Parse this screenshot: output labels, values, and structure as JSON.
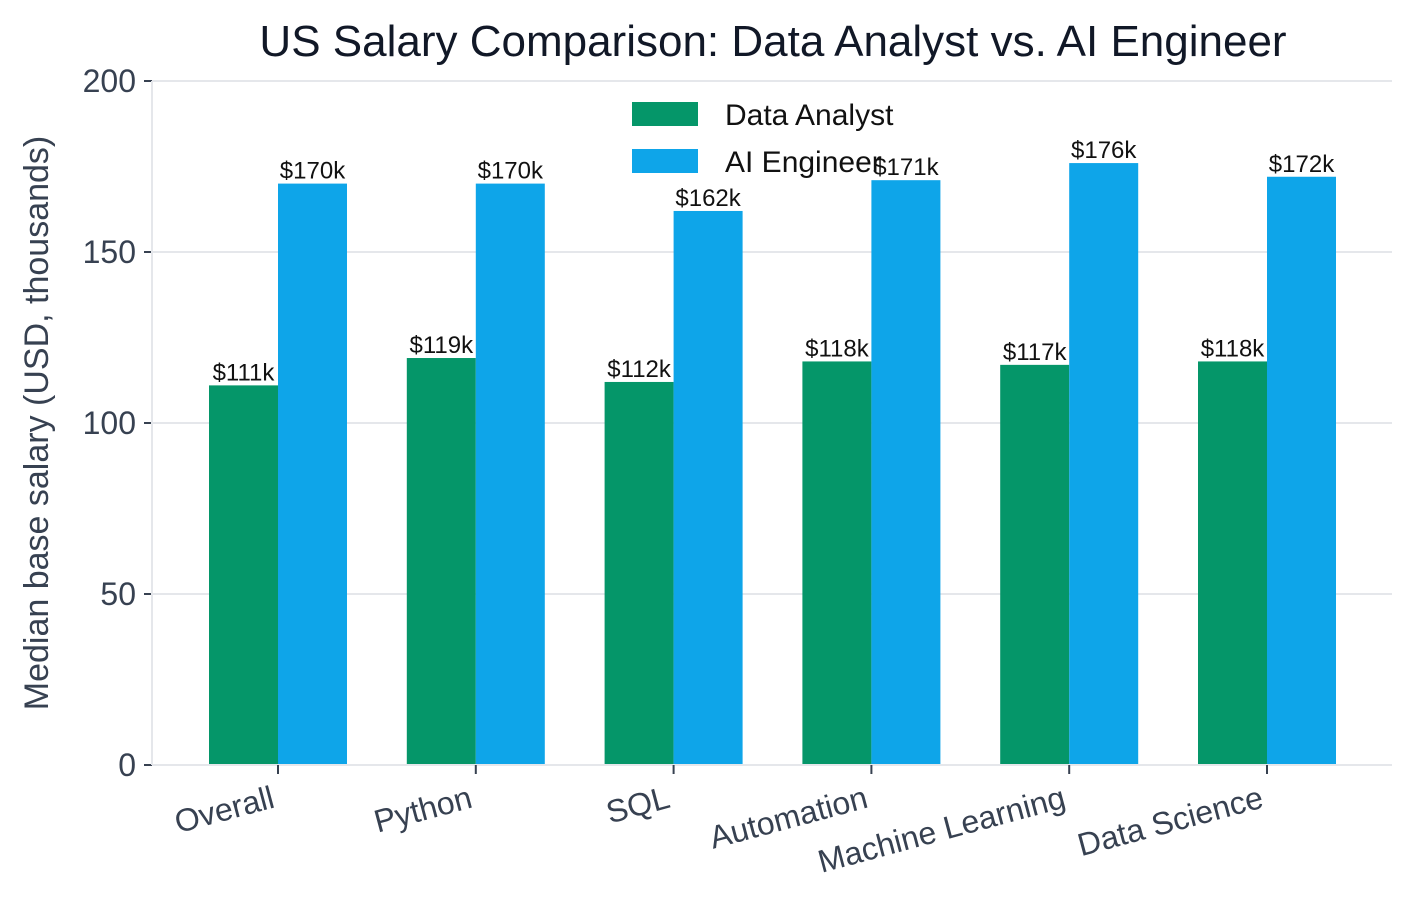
{
  "chart_data": {
    "type": "bar",
    "title": "US Salary Comparison: Data Analyst vs. AI Engineer",
    "xlabel": "",
    "ylabel": "Median base salary (USD, thousands)",
    "categories": [
      "Overall",
      "Python",
      "SQL",
      "Automation",
      "Machine Learning",
      "Data Science"
    ],
    "series": [
      {
        "name": "Data Analyst",
        "color": "#059669",
        "values": [
          111,
          119,
          112,
          118,
          117,
          118
        ],
        "labels": [
          "$111k",
          "$119k",
          "$112k",
          "$118k",
          "$117k",
          "$118k"
        ]
      },
      {
        "name": "AI Engineer",
        "color": "#0ea5e9",
        "values": [
          170,
          170,
          162,
          171,
          176,
          172
        ],
        "labels": [
          "$170k",
          "$170k",
          "$162k",
          "$171k",
          "$176k",
          "$172k"
        ]
      }
    ],
    "ylim": [
      0,
      200
    ],
    "yticks": [
      0,
      50,
      100,
      150,
      200
    ],
    "ytick_labels": [
      "0",
      "50",
      "100",
      "150",
      "200"
    ],
    "grid": "horizontal",
    "legend_position": "top-center"
  }
}
